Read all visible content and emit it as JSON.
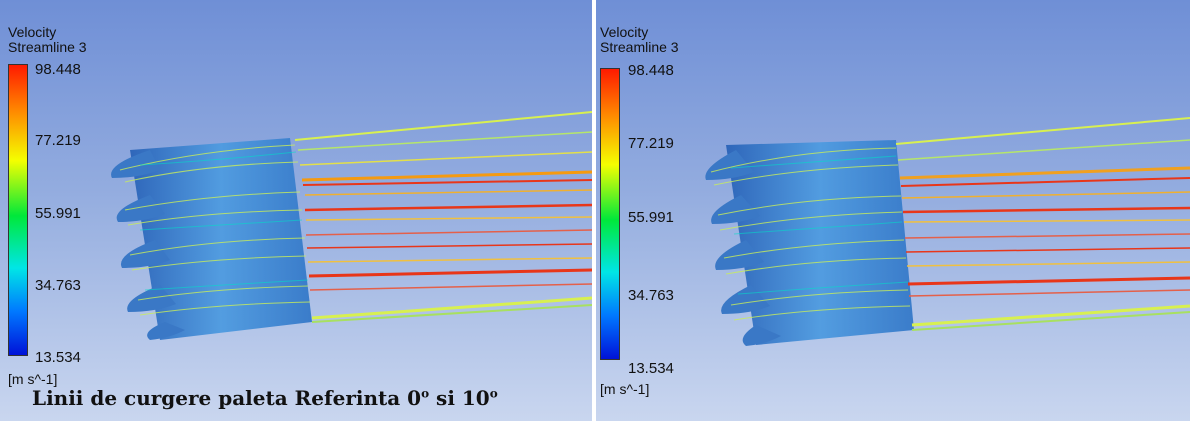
{
  "panels": [
    {
      "legend": {
        "title": "Velocity",
        "subtitle": "Streamline 3",
        "ticks": [
          "98.448",
          "77.219",
          "55.991",
          "34.763",
          "13.534"
        ],
        "unit": "[m s^-1]"
      }
    },
    {
      "legend": {
        "title": "Velocity",
        "subtitle": "Streamline 3",
        "ticks": [
          "98.448",
          "77.219",
          "55.991",
          "34.763",
          "13.534"
        ],
        "unit": "[m s^-1]"
      }
    }
  ],
  "caption": {
    "text": "Linii de curgere paleta Referinta  0",
    "deg1": "o",
    "mid": " si 10",
    "deg2": "o"
  },
  "colors": {
    "background_top": "#6f8fd6",
    "background_bottom": "#c9d6ef",
    "blade": "#3f86d0",
    "streamline_hot": "#e8361a",
    "streamline_warm": "#f5a800",
    "streamline_mid": "#d8e84a"
  }
}
